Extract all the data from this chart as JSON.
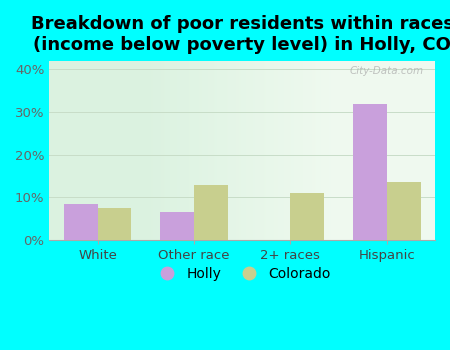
{
  "title": "Breakdown of poor residents within races\n(income below poverty level) in Holly, CO",
  "categories": [
    "White",
    "Other race",
    "2+ races",
    "Hispanic"
  ],
  "holly_values": [
    8.5,
    6.5,
    0,
    32.0
  ],
  "colorado_values": [
    7.5,
    13.0,
    11.0,
    13.5
  ],
  "holly_color": "#c9a0dc",
  "colorado_color": "#c8cf8e",
  "ylim": [
    0,
    42
  ],
  "yticks": [
    0,
    10,
    20,
    30,
    40
  ],
  "ytick_labels": [
    "0%",
    "10%",
    "20%",
    "30%",
    "40%"
  ],
  "background_color": "#00ffff",
  "grid_color": "#c8ddc8",
  "title_fontsize": 13,
  "tick_fontsize": 9.5,
  "legend_fontsize": 10,
  "bar_width": 0.35
}
